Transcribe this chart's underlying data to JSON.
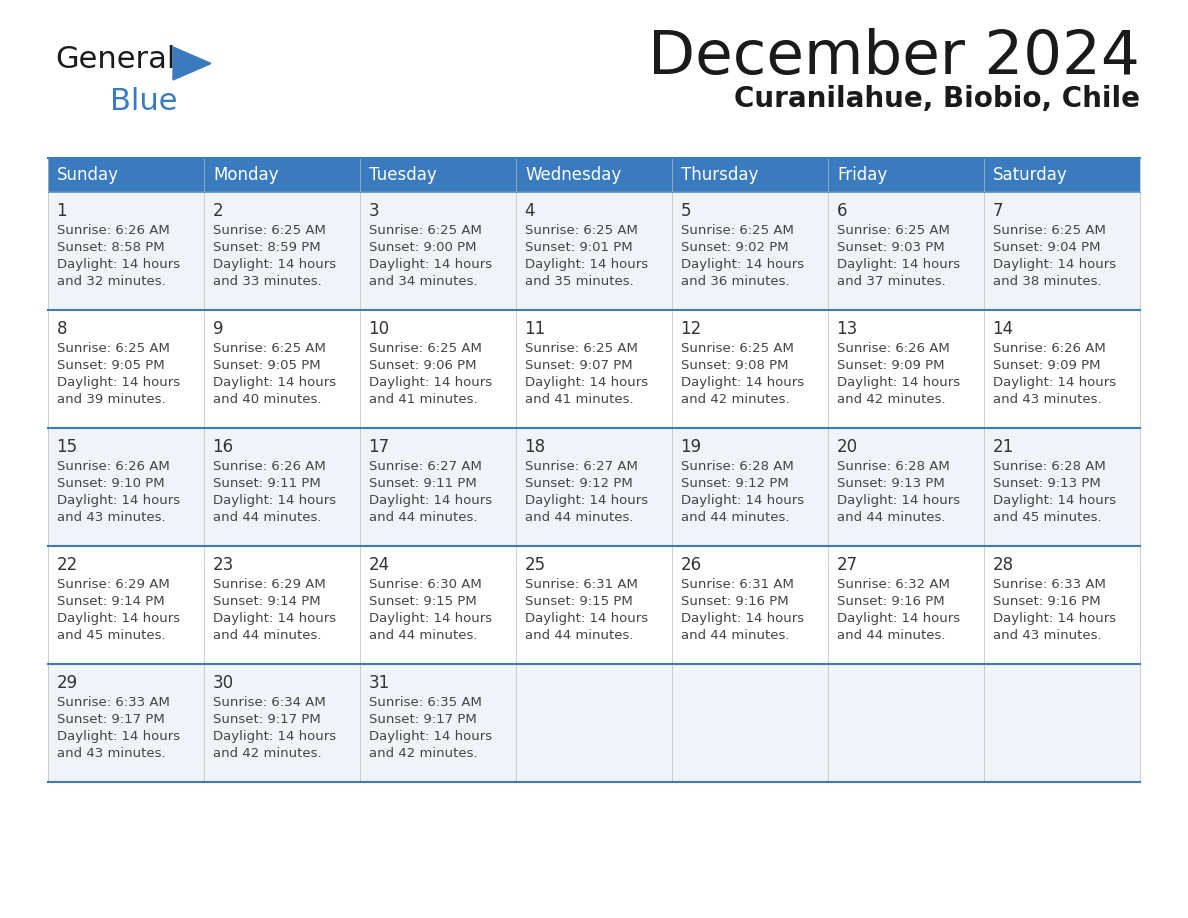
{
  "title": "December 2024",
  "subtitle": "Curanilahue, Biobio, Chile",
  "header_color": "#3a7abf",
  "header_text_color": "#ffffff",
  "cell_bg_odd": "#f0f4f8",
  "cell_bg_even": "#ffffff",
  "day_names": [
    "Sunday",
    "Monday",
    "Tuesday",
    "Wednesday",
    "Thursday",
    "Friday",
    "Saturday"
  ],
  "border_color": "#3a7abf",
  "day_number_color": "#333333",
  "text_color": "#444444",
  "logo_general_color": "#1a1a1a",
  "logo_blue_color": "#3a7abf",
  "title_color": "#1a1a1a",
  "subtitle_color": "#1a1a1a",
  "calendar_data": [
    [
      {
        "day": 1,
        "sunrise": "6:26 AM",
        "sunset": "8:58 PM",
        "dl1": "14 hours",
        "dl2": "and 32 minutes."
      },
      {
        "day": 2,
        "sunrise": "6:25 AM",
        "sunset": "8:59 PM",
        "dl1": "14 hours",
        "dl2": "and 33 minutes."
      },
      {
        "day": 3,
        "sunrise": "6:25 AM",
        "sunset": "9:00 PM",
        "dl1": "14 hours",
        "dl2": "and 34 minutes."
      },
      {
        "day": 4,
        "sunrise": "6:25 AM",
        "sunset": "9:01 PM",
        "dl1": "14 hours",
        "dl2": "and 35 minutes."
      },
      {
        "day": 5,
        "sunrise": "6:25 AM",
        "sunset": "9:02 PM",
        "dl1": "14 hours",
        "dl2": "and 36 minutes."
      },
      {
        "day": 6,
        "sunrise": "6:25 AM",
        "sunset": "9:03 PM",
        "dl1": "14 hours",
        "dl2": "and 37 minutes."
      },
      {
        "day": 7,
        "sunrise": "6:25 AM",
        "sunset": "9:04 PM",
        "dl1": "14 hours",
        "dl2": "and 38 minutes."
      }
    ],
    [
      {
        "day": 8,
        "sunrise": "6:25 AM",
        "sunset": "9:05 PM",
        "dl1": "14 hours",
        "dl2": "and 39 minutes."
      },
      {
        "day": 9,
        "sunrise": "6:25 AM",
        "sunset": "9:05 PM",
        "dl1": "14 hours",
        "dl2": "and 40 minutes."
      },
      {
        "day": 10,
        "sunrise": "6:25 AM",
        "sunset": "9:06 PM",
        "dl1": "14 hours",
        "dl2": "and 41 minutes."
      },
      {
        "day": 11,
        "sunrise": "6:25 AM",
        "sunset": "9:07 PM",
        "dl1": "14 hours",
        "dl2": "and 41 minutes."
      },
      {
        "day": 12,
        "sunrise": "6:25 AM",
        "sunset": "9:08 PM",
        "dl1": "14 hours",
        "dl2": "and 42 minutes."
      },
      {
        "day": 13,
        "sunrise": "6:26 AM",
        "sunset": "9:09 PM",
        "dl1": "14 hours",
        "dl2": "and 42 minutes."
      },
      {
        "day": 14,
        "sunrise": "6:26 AM",
        "sunset": "9:09 PM",
        "dl1": "14 hours",
        "dl2": "and 43 minutes."
      }
    ],
    [
      {
        "day": 15,
        "sunrise": "6:26 AM",
        "sunset": "9:10 PM",
        "dl1": "14 hours",
        "dl2": "and 43 minutes."
      },
      {
        "day": 16,
        "sunrise": "6:26 AM",
        "sunset": "9:11 PM",
        "dl1": "14 hours",
        "dl2": "and 44 minutes."
      },
      {
        "day": 17,
        "sunrise": "6:27 AM",
        "sunset": "9:11 PM",
        "dl1": "14 hours",
        "dl2": "and 44 minutes."
      },
      {
        "day": 18,
        "sunrise": "6:27 AM",
        "sunset": "9:12 PM",
        "dl1": "14 hours",
        "dl2": "and 44 minutes."
      },
      {
        "day": 19,
        "sunrise": "6:28 AM",
        "sunset": "9:12 PM",
        "dl1": "14 hours",
        "dl2": "and 44 minutes."
      },
      {
        "day": 20,
        "sunrise": "6:28 AM",
        "sunset": "9:13 PM",
        "dl1": "14 hours",
        "dl2": "and 44 minutes."
      },
      {
        "day": 21,
        "sunrise": "6:28 AM",
        "sunset": "9:13 PM",
        "dl1": "14 hours",
        "dl2": "and 45 minutes."
      }
    ],
    [
      {
        "day": 22,
        "sunrise": "6:29 AM",
        "sunset": "9:14 PM",
        "dl1": "14 hours",
        "dl2": "and 45 minutes."
      },
      {
        "day": 23,
        "sunrise": "6:29 AM",
        "sunset": "9:14 PM",
        "dl1": "14 hours",
        "dl2": "and 44 minutes."
      },
      {
        "day": 24,
        "sunrise": "6:30 AM",
        "sunset": "9:15 PM",
        "dl1": "14 hours",
        "dl2": "and 44 minutes."
      },
      {
        "day": 25,
        "sunrise": "6:31 AM",
        "sunset": "9:15 PM",
        "dl1": "14 hours",
        "dl2": "and 44 minutes."
      },
      {
        "day": 26,
        "sunrise": "6:31 AM",
        "sunset": "9:16 PM",
        "dl1": "14 hours",
        "dl2": "and 44 minutes."
      },
      {
        "day": 27,
        "sunrise": "6:32 AM",
        "sunset": "9:16 PM",
        "dl1": "14 hours",
        "dl2": "and 44 minutes."
      },
      {
        "day": 28,
        "sunrise": "6:33 AM",
        "sunset": "9:16 PM",
        "dl1": "14 hours",
        "dl2": "and 43 minutes."
      }
    ],
    [
      {
        "day": 29,
        "sunrise": "6:33 AM",
        "sunset": "9:17 PM",
        "dl1": "14 hours",
        "dl2": "and 43 minutes."
      },
      {
        "day": 30,
        "sunrise": "6:34 AM",
        "sunset": "9:17 PM",
        "dl1": "14 hours",
        "dl2": "and 42 minutes."
      },
      {
        "day": 31,
        "sunrise": "6:35 AM",
        "sunset": "9:17 PM",
        "dl1": "14 hours",
        "dl2": "and 42 minutes."
      },
      null,
      null,
      null,
      null
    ]
  ]
}
